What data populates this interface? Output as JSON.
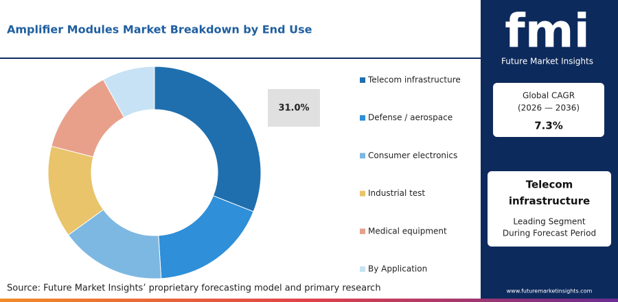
{
  "chart_data": {
    "type": "donut",
    "title": "Amplifier Modules Market Breakdown by End Use",
    "categories": [
      "Telecom infrastructure",
      "Defense / aerospace",
      "Consumer electronics",
      "Industrial test",
      "Medical equipment",
      "By Application"
    ],
    "values": [
      31,
      18,
      16,
      14,
      13,
      8
    ],
    "value_labels": [
      "31.0%",
      null,
      null,
      null,
      null,
      null
    ],
    "colors": [
      "#1f6fae",
      "#2f8fd8",
      "#7db8e2",
      "#e9c46a",
      "#e8a08a",
      "#c7e2f4"
    ],
    "legend": "right",
    "source": "Source: Future Market Insights’ proprietary forecasting model and primary research"
  },
  "sidebar": {
    "logo": "fmi",
    "logo_caption": "Future Market Insights",
    "cagr_title": "Global CAGR",
    "cagr_period": "(2026 — 2036)",
    "cagr_value": "7.3%",
    "segment_name": "Telecom infrastructure",
    "segment_caption_1": "Leading Segment",
    "segment_caption_2": "During Forecast Period",
    "website": "www.futuremarketinsights.com"
  }
}
